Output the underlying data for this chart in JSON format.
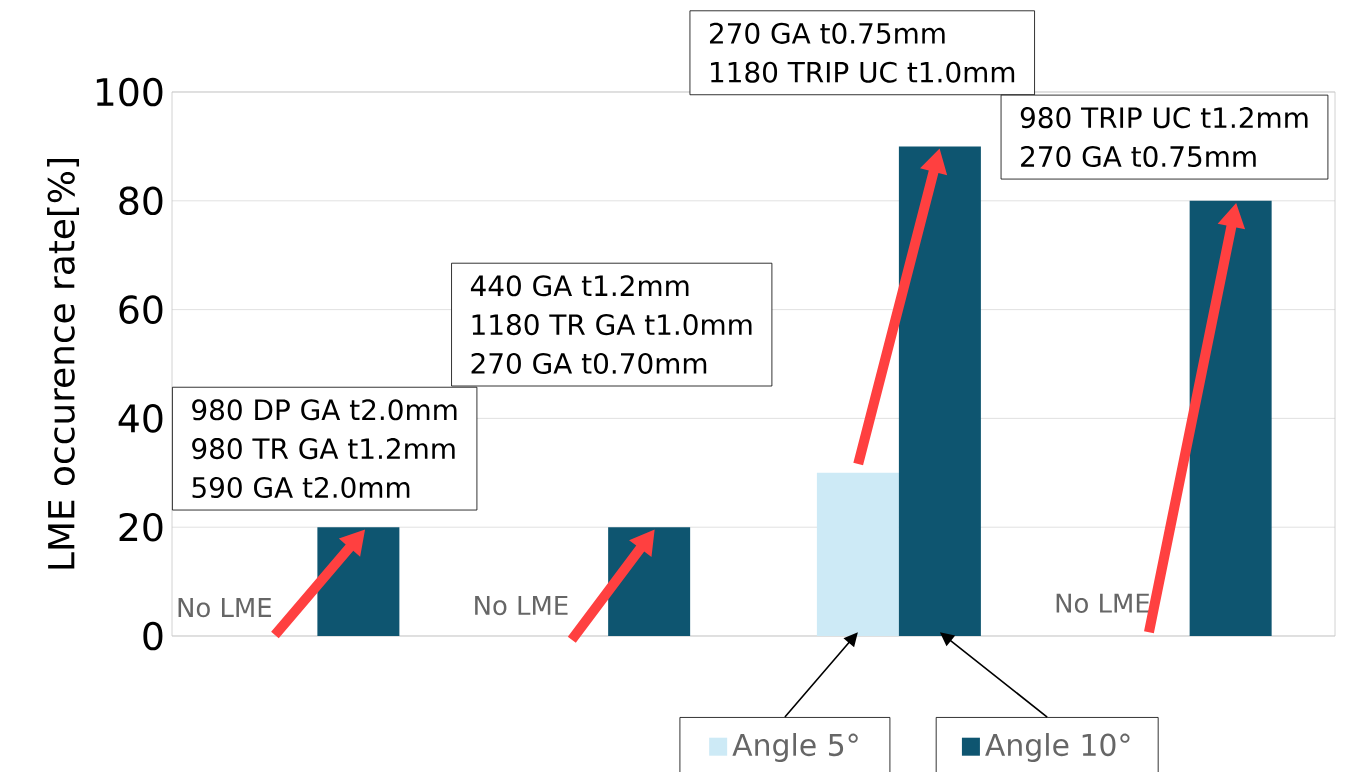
{
  "chart_data": {
    "type": "bar",
    "ylabel": "LME occurence rate[%]",
    "categories": [
      null,
      null,
      null,
      null
    ],
    "series": [
      {
        "name": "Angle 5°",
        "color": "#cdeaf6",
        "values": [
          0,
          0,
          30,
          0
        ]
      },
      {
        "name": "Angle 10°",
        "color": "#0e5570",
        "values": [
          20,
          20,
          90,
          80
        ]
      }
    ],
    "ylim": [
      0,
      100
    ],
    "yticks": [
      0,
      20,
      40,
      60,
      80,
      100
    ],
    "grid": "y",
    "legend": "bottom",
    "annotations": [
      "980 DP GA t2.0mm",
      "980 TR GA t1.2mm",
      "590 GA t2.0mm",
      "440 GA t1.2mm",
      "1180 TR GA t1.0mm",
      "270 GA t0.70mm",
      "270 GA t0.75mm",
      "1180 TRIP UC t1.0mm",
      "980 TRIP UC t1.2mm",
      "270 GA t0.75mm",
      "No LME",
      "No LME",
      "No LME"
    ]
  }
}
